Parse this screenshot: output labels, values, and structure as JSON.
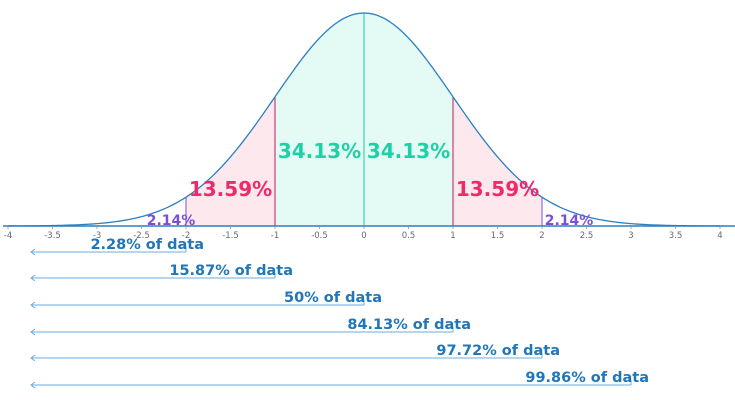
{
  "chart_data": {
    "type": "area",
    "title": "",
    "xlabel": "",
    "ylabel": "",
    "distribution": "standard-normal",
    "xlim": [
      -4,
      4
    ],
    "x_ticks": [
      -4,
      -3.5,
      -3,
      -2.5,
      -2,
      -1.5,
      -1,
      -0.5,
      0,
      0.5,
      1,
      1.5,
      2,
      2.5,
      3,
      3.5,
      4
    ],
    "x_tick_labels": [
      "-4",
      "-3.5",
      "-3",
      "-2.5",
      "-2",
      "-1.5",
      "-1",
      "-0.5",
      "0",
      "0.5",
      "1",
      "1.5",
      "2",
      "2.5",
      "3",
      "3.5",
      "4"
    ],
    "curve_color": "#2a7fbf",
    "regions": [
      {
        "from": -2,
        "to": -1,
        "label": "13.59%",
        "fill": "#fde8ee",
        "edge": "#c2185b",
        "text_color": "#ee2a6a"
      },
      {
        "from": -1,
        "to": 0,
        "label": "34.13%",
        "fill": "#e4faf4",
        "edge": "#1ccfa3",
        "text_color": "#1ed0a6"
      },
      {
        "from": 0,
        "to": 1,
        "label": "34.13%",
        "fill": "#e4faf4",
        "edge": "#1ccfa3",
        "text_color": "#1ed0a6"
      },
      {
        "from": 1,
        "to": 2,
        "label": "13.59%",
        "fill": "#fde8ee",
        "edge": "#c2185b",
        "text_color": "#ee2a6a"
      }
    ],
    "tail_labels": [
      {
        "at": -2,
        "side": "left",
        "label": "2.14%",
        "color": "#7b4fd6"
      },
      {
        "at": 2,
        "side": "right",
        "label": "2.14%",
        "color": "#7b4fd6"
      }
    ],
    "cumulative": [
      {
        "to": -2,
        "label": "2.28% of data"
      },
      {
        "to": -1,
        "label": "15.87% of data"
      },
      {
        "to": 0,
        "label": "50% of data"
      },
      {
        "to": 1,
        "label": "84.13% of data"
      },
      {
        "to": 2,
        "label": "97.72% of data"
      },
      {
        "to": 3,
        "label": "99.86% of data"
      }
    ],
    "cumulative_color": "#1f76b8",
    "arrow_color": "#6aaee0"
  }
}
